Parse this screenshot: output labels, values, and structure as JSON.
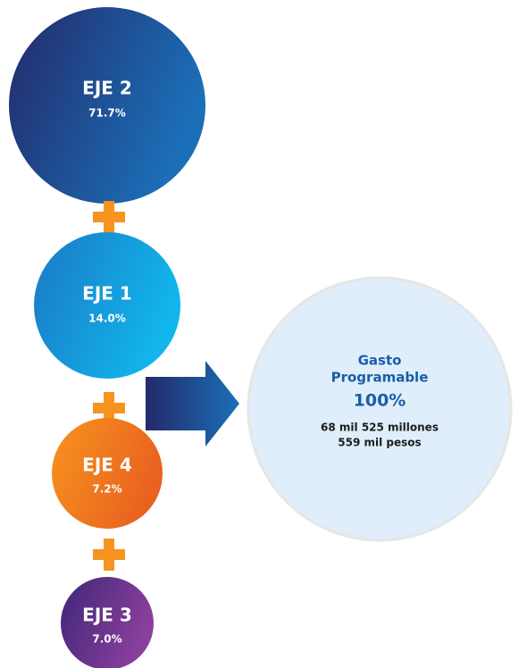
{
  "nodes": [
    {
      "label": "EJE 2",
      "value": "71.7%"
    },
    {
      "label": "EJE 1",
      "value": "14.0%"
    },
    {
      "label": "EJE 4",
      "value": "7.2%"
    },
    {
      "label": "EJE 3",
      "value": "7.0%"
    }
  ],
  "total": {
    "title_lines": [
      "Gasto",
      "Programable"
    ],
    "value": "100%",
    "amount_lines": [
      "68 mil 525 millones",
      "559 mil pesos"
    ]
  }
}
